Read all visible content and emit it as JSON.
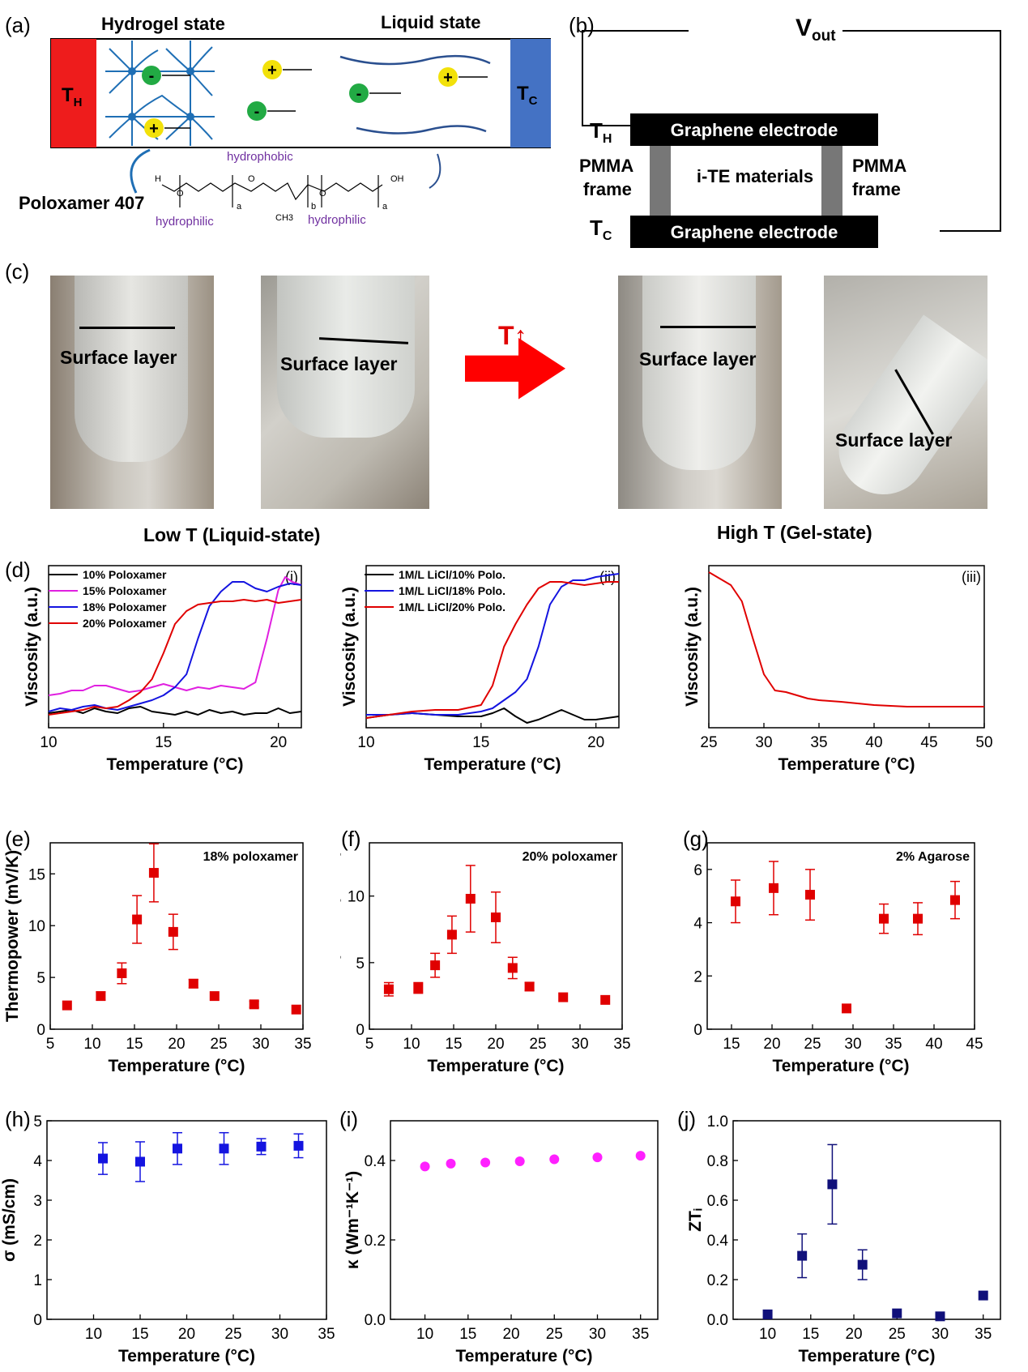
{
  "panel_a": {
    "label": "(a)",
    "hydrogel_title": "Hydrogel state",
    "liquid_title": "Liquid state",
    "th": "T",
    "th_sub": "H",
    "tc": "T",
    "tc_sub": "C",
    "plus": "+",
    "minus": "-",
    "polymer": "Poloxamer 407",
    "hydrophobic": "hydrophobic",
    "hydrophilic": "hydrophilic",
    "chem_h": "H",
    "chem_o": "O",
    "chem_oh": "OH",
    "chem_ch3": "CH3",
    "sub_a": "a",
    "sub_b": "b"
  },
  "panel_b": {
    "label": "(b)",
    "vout": "V",
    "vout_sub": "out",
    "th": "T",
    "th_sub": "H",
    "tc": "T",
    "tc_sub": "C",
    "electrode_top": "Graphene electrode",
    "electrode_bottom": "Graphene electrode",
    "pmma_line1": "PMMA",
    "pmma_line2": "frame",
    "material": "i-TE materials"
  },
  "panel_c": {
    "label": "(c)",
    "surface": "Surface layer",
    "arrow": "T↑",
    "low": "Low T (Liquid-state)",
    "high": "High T (Gel-state)"
  },
  "axis_text": {
    "temperature": "Temperature (°C)",
    "viscosity": "Viscosity (a.u.)",
    "thermopower": "Thermopower (mV/K)",
    "sigma": "σ (mS/cm)",
    "kappa": "κ (Wm⁻¹K⁻¹)",
    "zt": "ZTᵢ"
  },
  "colors": {
    "red": "#e00000",
    "blue": "#1414e0",
    "magenta": "#e020e0",
    "navy": "#10107a",
    "pink": "#ff20ff"
  },
  "chart_data": [
    {
      "id": "d-i",
      "panel": "(d)",
      "sub": "(i)",
      "type": "line",
      "xlabel": "Temperature (°C)",
      "ylabel": "Viscosity (a.u.)",
      "xlim": [
        10,
        21
      ],
      "ylim": [
        0,
        1
      ],
      "xticks": [
        10,
        15,
        20
      ],
      "series": [
        {
          "name": "10% Poloxamer",
          "color": "#000000",
          "x": [
            10,
            10.5,
            11,
            11.5,
            12,
            12.5,
            13,
            13.5,
            14,
            14.5,
            15,
            15.5,
            16,
            16.5,
            17,
            17.5,
            18,
            18.5,
            19,
            19.5,
            20,
            20.5,
            21
          ],
          "y": [
            0.09,
            0.1,
            0.11,
            0.09,
            0.12,
            0.1,
            0.09,
            0.12,
            0.13,
            0.1,
            0.09,
            0.08,
            0.1,
            0.08,
            0.11,
            0.09,
            0.1,
            0.08,
            0.09,
            0.09,
            0.12,
            0.09,
            0.1
          ]
        },
        {
          "name": "15% Poloxamer",
          "color": "#e020e0",
          "x": [
            10,
            10.5,
            11,
            11.5,
            12,
            12.5,
            13,
            13.5,
            14,
            14.5,
            15,
            15.5,
            16,
            16.5,
            17,
            17.5,
            18,
            18.5,
            19,
            19.5,
            20,
            20.3,
            20.6,
            21
          ],
          "y": [
            0.2,
            0.21,
            0.23,
            0.23,
            0.26,
            0.26,
            0.24,
            0.22,
            0.23,
            0.25,
            0.27,
            0.25,
            0.23,
            0.25,
            0.24,
            0.26,
            0.25,
            0.24,
            0.28,
            0.55,
            0.85,
            0.93,
            0.9,
            0.88
          ]
        },
        {
          "name": "18% Poloxamer",
          "color": "#1414e0",
          "x": [
            10,
            10.5,
            11,
            11.5,
            12,
            12.5,
            13,
            13.5,
            14,
            14.5,
            15,
            15.5,
            16,
            16.5,
            17,
            17.5,
            18,
            18.5,
            19,
            19.5,
            20,
            20.5,
            21
          ],
          "y": [
            0.1,
            0.12,
            0.11,
            0.13,
            0.14,
            0.12,
            0.11,
            0.13,
            0.15,
            0.17,
            0.2,
            0.25,
            0.33,
            0.55,
            0.75,
            0.84,
            0.9,
            0.9,
            0.86,
            0.84,
            0.87,
            0.89,
            0.88
          ]
        },
        {
          "name": "20% Poloxamer",
          "color": "#e00000",
          "x": [
            10,
            10.5,
            11,
            11.5,
            12,
            12.5,
            13,
            13.5,
            14,
            14.5,
            15,
            15.5,
            16,
            16.5,
            17,
            17.5,
            18,
            18.5,
            19,
            19.5,
            20,
            20.5,
            21
          ],
          "y": [
            0.08,
            0.09,
            0.1,
            0.11,
            0.13,
            0.12,
            0.13,
            0.17,
            0.22,
            0.3,
            0.46,
            0.64,
            0.72,
            0.76,
            0.77,
            0.78,
            0.78,
            0.79,
            0.78,
            0.79,
            0.77,
            0.78,
            0.79
          ]
        }
      ]
    },
    {
      "id": "d-ii",
      "sub": "(ii)",
      "type": "line",
      "xlabel": "Temperature (°C)",
      "ylabel": "Viscosity (a.u.)",
      "xlim": [
        10,
        21
      ],
      "ylim": [
        0,
        1
      ],
      "xticks": [
        10,
        15,
        20
      ],
      "series": [
        {
          "name": "1M/L LiCl/10% Polo.",
          "color": "#000000",
          "x": [
            10,
            11,
            12,
            13,
            14,
            15,
            15.5,
            16,
            16.5,
            17,
            17.5,
            18,
            18.5,
            19,
            19.5,
            20,
            20.5,
            21
          ],
          "y": [
            0.06,
            0.08,
            0.09,
            0.08,
            0.07,
            0.07,
            0.09,
            0.12,
            0.07,
            0.03,
            0.05,
            0.08,
            0.11,
            0.08,
            0.05,
            0.05,
            0.06,
            0.07
          ]
        },
        {
          "name": "1M/L LiCl/18% Polo.",
          "color": "#1414e0",
          "x": [
            10,
            11,
            12,
            13,
            14,
            15,
            15.5,
            16,
            16.5,
            17,
            17.5,
            18,
            18.5,
            19,
            19.5,
            20,
            20.5,
            21
          ],
          "y": [
            0.08,
            0.08,
            0.09,
            0.08,
            0.08,
            0.1,
            0.12,
            0.17,
            0.22,
            0.3,
            0.5,
            0.76,
            0.87,
            0.91,
            0.91,
            0.93,
            0.94,
            0.95
          ]
        },
        {
          "name": "1M/L LiCl/20% Polo.",
          "color": "#e00000",
          "x": [
            10,
            11,
            12,
            13,
            14,
            15,
            15.5,
            16,
            16.5,
            17,
            17.5,
            18,
            18.5,
            19,
            19.5,
            20,
            20.5,
            21
          ],
          "y": [
            0.06,
            0.08,
            0.1,
            0.11,
            0.11,
            0.14,
            0.26,
            0.5,
            0.64,
            0.76,
            0.86,
            0.9,
            0.9,
            0.89,
            0.88,
            0.89,
            0.9,
            0.9
          ]
        }
      ]
    },
    {
      "id": "d-iii",
      "sub": "(iii)",
      "type": "line",
      "xlabel": "Temperature (°C)",
      "ylabel": "Viscosity (a.u.)",
      "xlim": [
        25,
        50
      ],
      "ylim": [
        0,
        1
      ],
      "xticks": [
        25,
        30,
        35,
        40,
        45,
        50
      ],
      "series": [
        {
          "name": "",
          "color": "#e00000",
          "x": [
            25,
            26,
            27,
            28,
            29,
            30,
            31,
            32,
            33,
            34,
            35,
            37,
            40,
            43,
            45,
            48,
            50
          ],
          "y": [
            0.96,
            0.92,
            0.88,
            0.78,
            0.55,
            0.33,
            0.23,
            0.22,
            0.2,
            0.18,
            0.17,
            0.16,
            0.14,
            0.13,
            0.13,
            0.13,
            0.13
          ]
        }
      ]
    },
    {
      "id": "e",
      "panel": "(e)",
      "type": "scatter",
      "tag": "18% poloxamer",
      "xlabel": "Temperature (°C)",
      "ylabel": "Thermopower (mV/K)",
      "xlim": [
        5,
        35
      ],
      "ylim": [
        0,
        18
      ],
      "xticks": [
        5,
        10,
        15,
        20,
        25,
        30,
        35
      ],
      "yticks": [
        0,
        5,
        10,
        15
      ],
      "marker": "square",
      "color": "#e00000",
      "points": [
        {
          "x": 7,
          "y": 2.3,
          "err": 0
        },
        {
          "x": 11,
          "y": 3.2,
          "err": 0.4
        },
        {
          "x": 13.5,
          "y": 5.4,
          "err": 1.0
        },
        {
          "x": 15.3,
          "y": 10.6,
          "err": 2.3
        },
        {
          "x": 17.3,
          "y": 15.1,
          "err": 2.8
        },
        {
          "x": 19.6,
          "y": 9.4,
          "err": 1.7
        },
        {
          "x": 22,
          "y": 4.4,
          "err": 0.4
        },
        {
          "x": 24.5,
          "y": 3.2,
          "err": 0
        },
        {
          "x": 29.2,
          "y": 2.4,
          "err": 0.3
        },
        {
          "x": 34.2,
          "y": 1.9,
          "err": 0
        }
      ]
    },
    {
      "id": "f",
      "panel": "(f)",
      "type": "scatter",
      "tag": "20% poloxamer",
      "xlabel": "Temperature (°C)",
      "ylabel": "Thermopower (mV/K)",
      "xlim": [
        5,
        35
      ],
      "ylim": [
        0,
        14
      ],
      "xticks": [
        5,
        10,
        15,
        20,
        25,
        30,
        35
      ],
      "yticks": [
        0,
        5,
        10
      ],
      "marker": "square",
      "color": "#e00000",
      "points": [
        {
          "x": 7.3,
          "y": 3.0,
          "err": 0.5
        },
        {
          "x": 10.8,
          "y": 3.1,
          "err": 0.4
        },
        {
          "x": 12.8,
          "y": 4.8,
          "err": 0.9
        },
        {
          "x": 14.8,
          "y": 7.1,
          "err": 1.4
        },
        {
          "x": 17,
          "y": 9.8,
          "err": 2.5
        },
        {
          "x": 20,
          "y": 8.4,
          "err": 1.9
        },
        {
          "x": 22,
          "y": 4.6,
          "err": 0.8
        },
        {
          "x": 24,
          "y": 3.2,
          "err": 0.3
        },
        {
          "x": 28,
          "y": 2.4,
          "err": 0
        },
        {
          "x": 33,
          "y": 2.2,
          "err": 0
        }
      ]
    },
    {
      "id": "g",
      "panel": "(g)",
      "type": "scatter",
      "tag": "2% Agarose",
      "xlabel": "Temperature (°C)",
      "ylabel": "Thermopower (mV/K)",
      "xlim": [
        12,
        45
      ],
      "ylim": [
        0,
        7
      ],
      "xticks": [
        15,
        20,
        25,
        30,
        35,
        40,
        45
      ],
      "yticks": [
        0,
        2,
        4,
        6
      ],
      "marker": "square",
      "color": "#e00000",
      "points": [
        {
          "x": 15.5,
          "y": 4.8,
          "err": 0.8
        },
        {
          "x": 20.2,
          "y": 5.3,
          "err": 1.0
        },
        {
          "x": 24.7,
          "y": 5.05,
          "err": 0.95
        },
        {
          "x": 29.2,
          "y": 0.78,
          "err": 0.15
        },
        {
          "x": 33.8,
          "y": 4.15,
          "err": 0.55
        },
        {
          "x": 38,
          "y": 4.15,
          "err": 0.6
        },
        {
          "x": 42.6,
          "y": 4.85,
          "err": 0.7
        }
      ]
    },
    {
      "id": "h",
      "panel": "(h)",
      "type": "scatter",
      "xlabel": "Temperature (°C)",
      "ylabel": "σ (mS/cm)",
      "xlim": [
        5,
        35
      ],
      "ylim": [
        0,
        5
      ],
      "xticks": [
        10,
        15,
        20,
        25,
        30,
        35
      ],
      "yticks": [
        0,
        1,
        2,
        3,
        4,
        5
      ],
      "marker": "square",
      "color": "#1414e0",
      "points": [
        {
          "x": 11,
          "y": 4.05,
          "err": 0.4
        },
        {
          "x": 15,
          "y": 3.97,
          "err": 0.5
        },
        {
          "x": 19,
          "y": 4.3,
          "err": 0.4
        },
        {
          "x": 24,
          "y": 4.3,
          "err": 0.4
        },
        {
          "x": 28,
          "y": 4.35,
          "err": 0.2
        },
        {
          "x": 32,
          "y": 4.37,
          "err": 0.3
        }
      ]
    },
    {
      "id": "i",
      "panel": "(i)",
      "type": "scatter",
      "xlabel": "Temperature (°C)",
      "ylabel": "κ (Wm⁻¹K⁻¹)",
      "xlim": [
        6,
        37
      ],
      "ylim": [
        0,
        0.5
      ],
      "xticks": [
        10,
        15,
        20,
        25,
        30,
        35
      ],
      "yticks": [
        0.0,
        0.2,
        0.4
      ],
      "marker": "circle",
      "color": "#ff20ff",
      "points": [
        {
          "x": 10,
          "y": 0.385,
          "err": 0
        },
        {
          "x": 13,
          "y": 0.392,
          "err": 0
        },
        {
          "x": 17,
          "y": 0.395,
          "err": 0
        },
        {
          "x": 21,
          "y": 0.398,
          "err": 0
        },
        {
          "x": 25,
          "y": 0.403,
          "err": 0
        },
        {
          "x": 30,
          "y": 0.408,
          "err": 0
        },
        {
          "x": 35,
          "y": 0.412,
          "err": 0
        }
      ]
    },
    {
      "id": "j",
      "panel": "(j)",
      "type": "scatter",
      "xlabel": "Temperature (°C)",
      "ylabel": "ZTᵢ",
      "xlim": [
        6,
        37
      ],
      "ylim": [
        0,
        1.0
      ],
      "xticks": [
        10,
        15,
        20,
        25,
        30,
        35
      ],
      "yticks": [
        0.0,
        0.2,
        0.4,
        0.6,
        0.8,
        1.0
      ],
      "marker": "square",
      "color": "#10107a",
      "points": [
        {
          "x": 10,
          "y": 0.025,
          "err": 0
        },
        {
          "x": 14,
          "y": 0.32,
          "err": 0.11
        },
        {
          "x": 17.5,
          "y": 0.68,
          "err": 0.2
        },
        {
          "x": 21,
          "y": 0.275,
          "err": 0.075
        },
        {
          "x": 25,
          "y": 0.03,
          "err": 0
        },
        {
          "x": 30,
          "y": 0.015,
          "err": 0
        },
        {
          "x": 35,
          "y": 0.12,
          "err": 0
        }
      ]
    }
  ]
}
